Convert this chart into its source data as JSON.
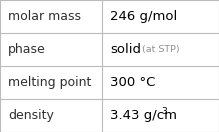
{
  "rows": [
    {
      "label": "molar mass",
      "value": "246 g/mol",
      "type": "plain"
    },
    {
      "label": "phase",
      "value": "solid",
      "value_suffix": " (at STP)",
      "type": "mixed"
    },
    {
      "label": "melting point",
      "value": "300 °C",
      "type": "plain"
    },
    {
      "label": "density",
      "value": "3.43 g/cm",
      "superscript": "3",
      "type": "super"
    }
  ],
  "col_split": 0.465,
  "bg_color": "#ffffff",
  "border_color": "#bbbbbb",
  "label_color": "#303030",
  "value_color": "#000000",
  "suffix_color": "#909090",
  "font_size_label": 9.0,
  "font_size_value": 9.5,
  "font_size_suffix": 6.8,
  "font_size_super": 6.5
}
